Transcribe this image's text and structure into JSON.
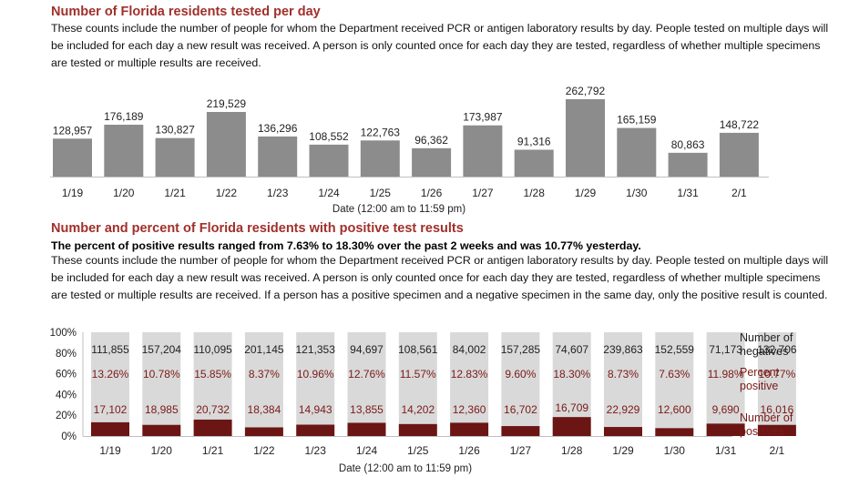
{
  "section1": {
    "title": "Number of Florida residents tested per day",
    "description": "These counts include the number of people for whom the Department received PCR or antigen laboratory results by day. People tested on multiple days will be included for each day a new result was received. A person is only counted once for each day they are tested, regardless of whether multiple specimens are tested or multiple results are received."
  },
  "section2": {
    "title": "Number and percent of Florida residents with positive test results",
    "highlight": "The percent of positive results ranged from 7.63% to 18.30% over the past 2 weeks and was 10.77% yesterday.",
    "description": "These counts include the number of people for whom the Department received PCR or antigen laboratory results by day. People tested on multiple days will be included for each day a new result was received. A person is only counted once for each day they are tested, regardless of whether multiple specimens are tested or multiple results are received. If a person has a positive specimen and a negative specimen in the same day, only the positive result is counted."
  },
  "colors": {
    "title_red": "#a0302b",
    "bar_gray": "#8c8c8c",
    "negative_gray": "#d9d9d9",
    "positive_maroon": "#6b1614",
    "label_maroon": "#7a1a18"
  },
  "chart_data": [
    {
      "type": "bar",
      "categories": [
        "1/19",
        "1/20",
        "1/21",
        "1/22",
        "1/23",
        "1/24",
        "1/25",
        "1/26",
        "1/27",
        "1/28",
        "1/29",
        "1/30",
        "1/31",
        "2/1"
      ],
      "values": [
        128957,
        176189,
        130827,
        219529,
        136296,
        108552,
        122763,
        96362,
        173987,
        91316,
        262792,
        165159,
        80863,
        148722
      ],
      "value_labels": [
        "128,957",
        "176,189",
        "130,827",
        "219,529",
        "136,296",
        "108,552",
        "122,763",
        "96,362",
        "173,987",
        "91,316",
        "262,792",
        "165,159",
        "80,863",
        "148,722"
      ],
      "xlabel": "Date (12:00 am to 11:59 pm)",
      "ylabel": "",
      "grid": false
    },
    {
      "type": "bar",
      "stacked": "percent",
      "categories": [
        "1/19",
        "1/20",
        "1/21",
        "1/22",
        "1/23",
        "1/24",
        "1/25",
        "1/26",
        "1/27",
        "1/28",
        "1/29",
        "1/30",
        "1/31",
        "2/1"
      ],
      "series": [
        {
          "name": "Number of negatives",
          "values": [
            111855,
            157204,
            110095,
            201145,
            121353,
            94697,
            108561,
            84002,
            157285,
            74607,
            239863,
            152559,
            71173,
            132706
          ],
          "labels": [
            "111,855",
            "157,204",
            "110,095",
            "201,145",
            "121,353",
            "94,697",
            "108,561",
            "84,002",
            "157,285",
            "74,607",
            "239,863",
            "152,559",
            "71,173",
            "132,706"
          ]
        },
        {
          "name": "Number of positives",
          "values": [
            17102,
            18985,
            20732,
            18384,
            14943,
            13855,
            14202,
            12360,
            16702,
            16709,
            22929,
            12600,
            9690,
            16016
          ],
          "labels": [
            "17,102",
            "18,985",
            "20,732",
            "18,384",
            "14,943",
            "13,855",
            "14,202",
            "12,360",
            "16,702",
            "16,709",
            "22,929",
            "12,600",
            "9,690",
            "16,016"
          ]
        }
      ],
      "percent_positive": [
        13.26,
        10.78,
        15.85,
        8.37,
        10.96,
        12.76,
        11.57,
        12.83,
        9.6,
        18.3,
        8.73,
        7.63,
        11.98,
        10.77
      ],
      "percent_positive_labels": [
        "13.26%",
        "10.78%",
        "15.85%",
        "8.37%",
        "10.96%",
        "12.76%",
        "11.57%",
        "12.83%",
        "9.60%",
        "18.30%",
        "8.73%",
        "7.63%",
        "11.98%",
        "10.77%"
      ],
      "percent_label_name": "Percent positive",
      "yticks": [
        "0%",
        "20%",
        "40%",
        "60%",
        "80%",
        "100%"
      ],
      "ylim": [
        0,
        100
      ],
      "xlabel": "Date (12:00 am to 11:59 pm)",
      "legend": [
        "Number of negatives",
        "Percent positive",
        "Number of positives"
      ],
      "legend_position": "right",
      "grid": false
    }
  ]
}
